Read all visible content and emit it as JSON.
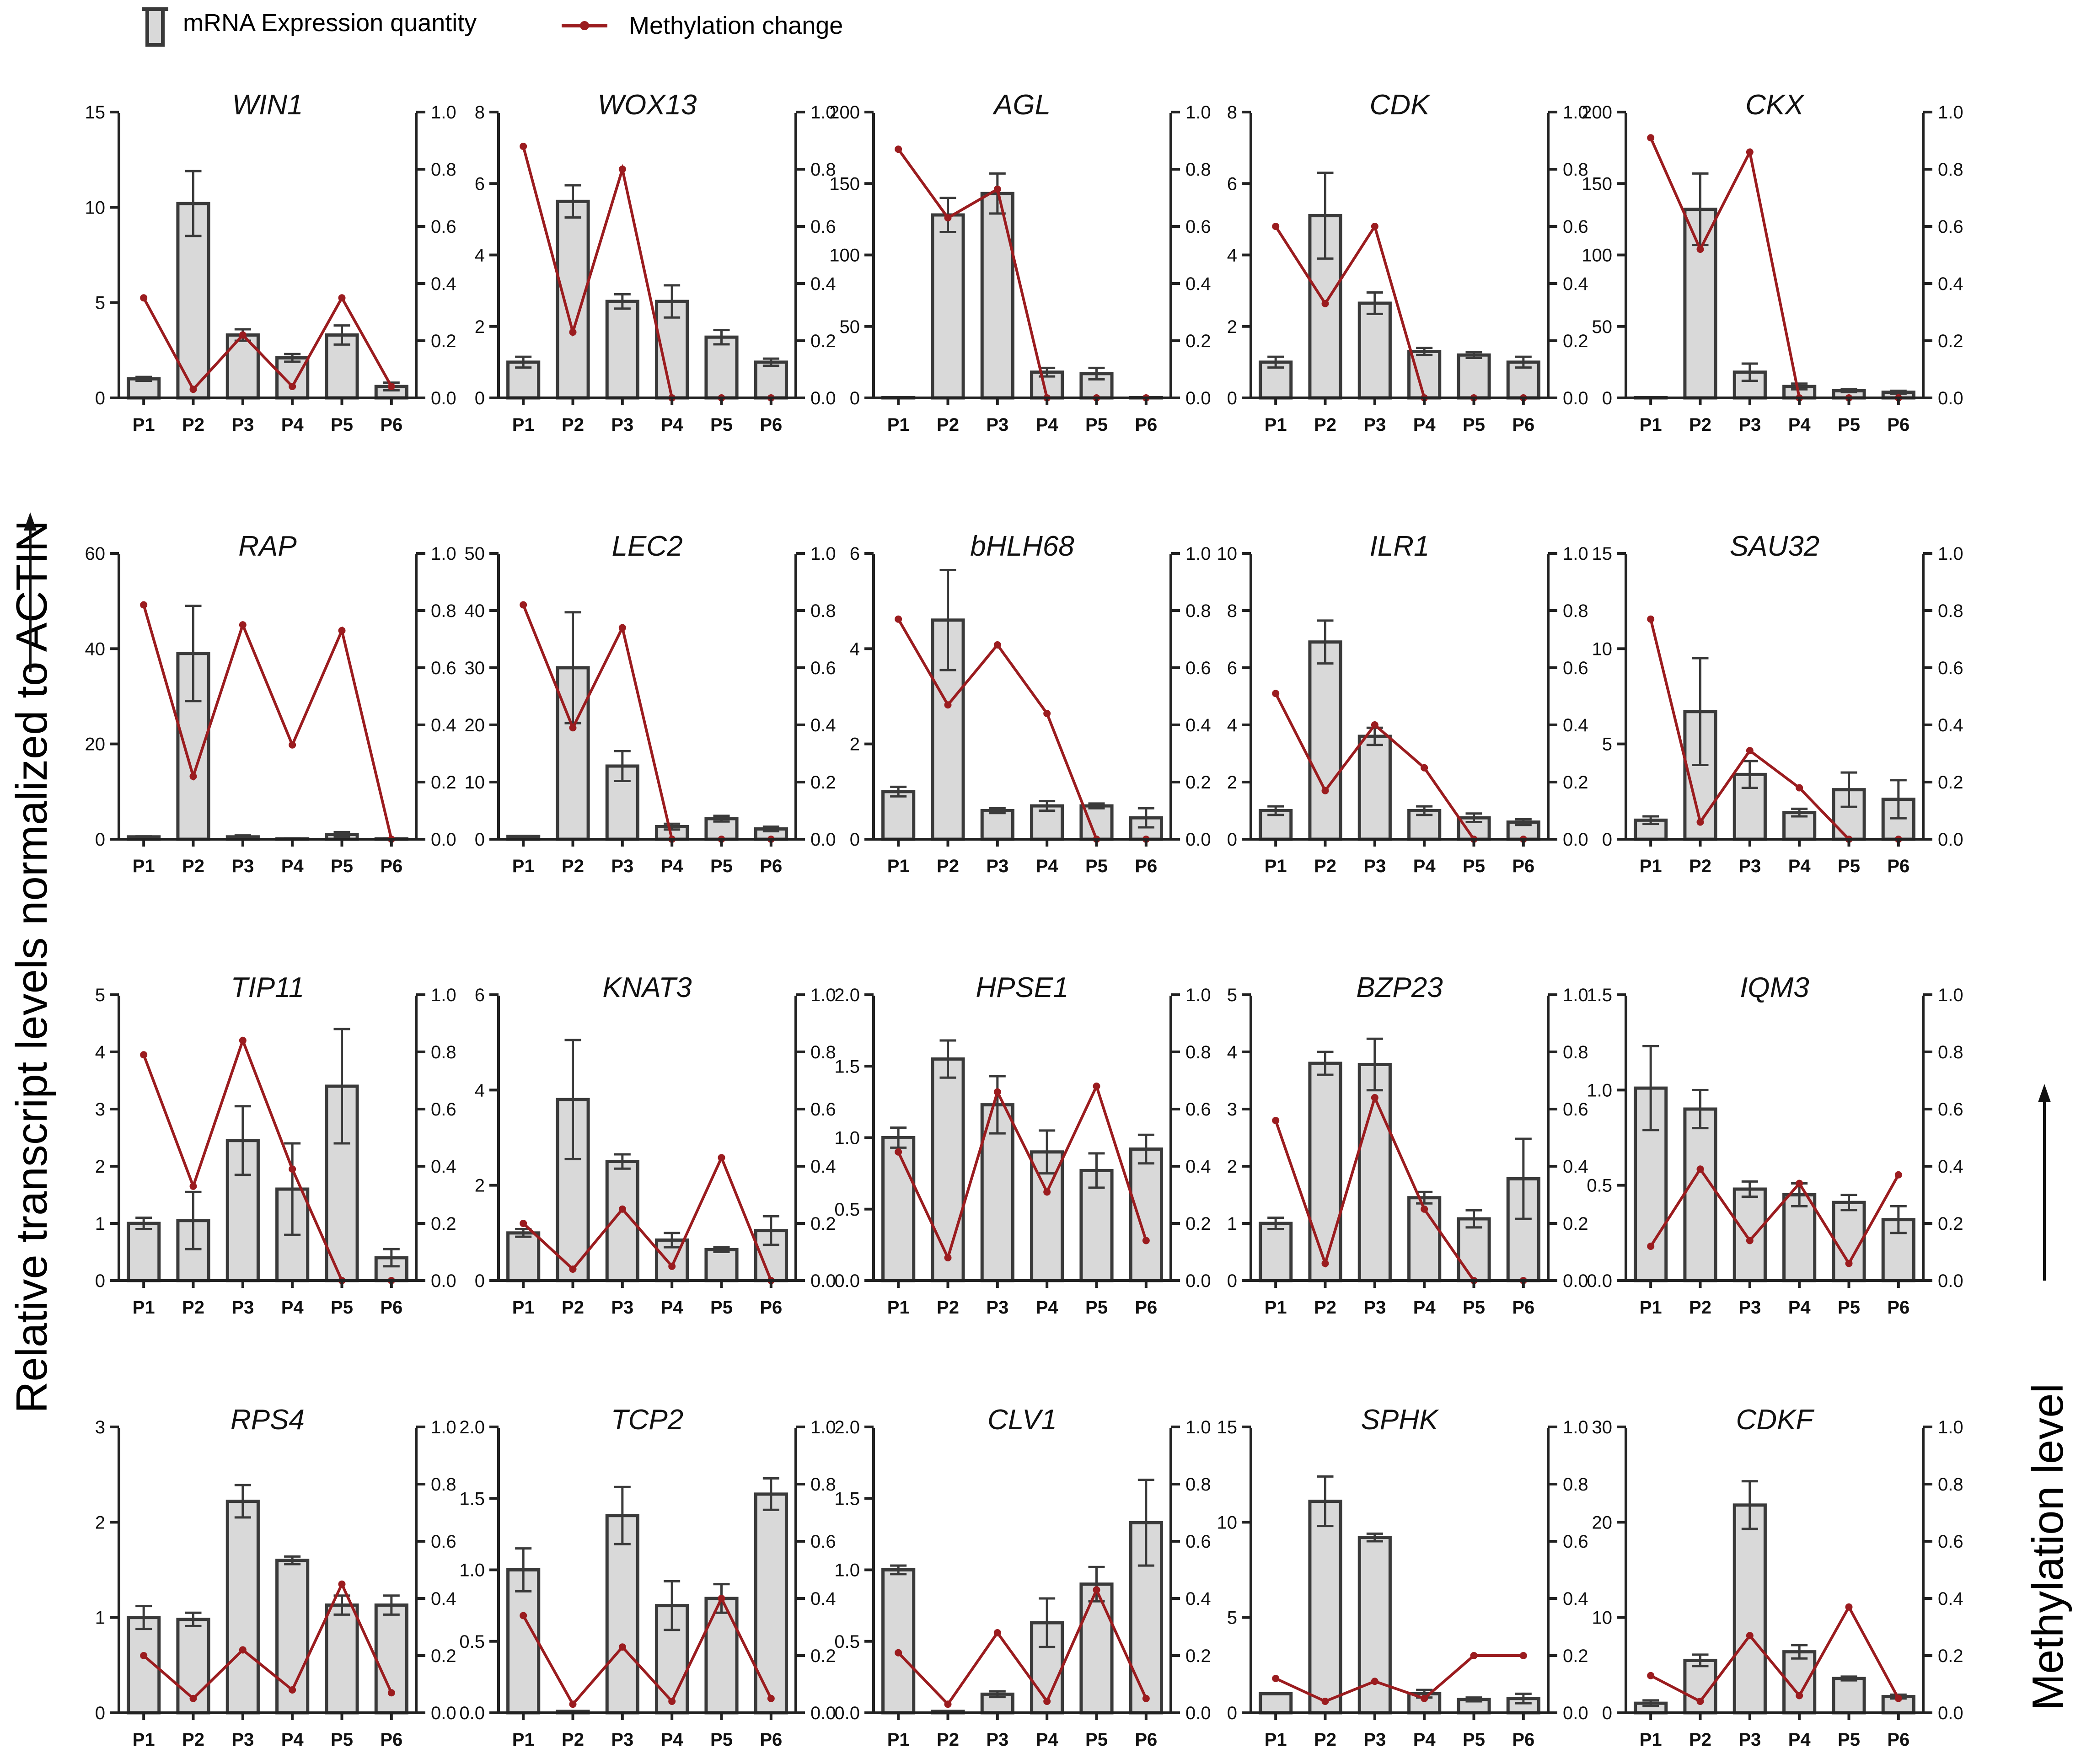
{
  "legend": {
    "bar_label": "mRNA Expression quantity",
    "line_label": "Methylation change"
  },
  "y_left_title": "Relative transcript levels normalized to ACTIN",
  "y_right_title": "Methylation level",
  "colors": {
    "bar_fill": "#d9d9d9",
    "bar_stroke": "#3a3a3a",
    "line": "#9b1c1f",
    "axis": "#222222"
  },
  "chart_data": [
    {
      "type": "bar",
      "title": "WIN1",
      "categories": [
        "P1",
        "P2",
        "P3",
        "P4",
        "P5",
        "P6"
      ],
      "ylim": [
        0,
        15
      ],
      "yticks": [
        0,
        5,
        10,
        15
      ],
      "values": [
        1.0,
        10.2,
        3.3,
        2.1,
        3.3,
        0.6
      ],
      "errors": [
        0.1,
        1.7,
        0.3,
        0.2,
        0.5,
        0.2
      ],
      "methylation": [
        0.35,
        0.03,
        0.22,
        0.04,
        0.35,
        0.04
      ],
      "y2lim": [
        0,
        1.0
      ]
    },
    {
      "type": "bar",
      "title": "WOX13",
      "categories": [
        "P1",
        "P2",
        "P3",
        "P4",
        "P5",
        "P6"
      ],
      "ylim": [
        0,
        8
      ],
      "yticks": [
        0,
        2,
        4,
        6,
        8
      ],
      "values": [
        1.0,
        5.5,
        2.7,
        2.7,
        1.7,
        1.0
      ],
      "errors": [
        0.15,
        0.45,
        0.2,
        0.45,
        0.2,
        0.1
      ],
      "methylation": [
        0.88,
        0.23,
        0.8,
        0.0,
        0.0,
        0.0
      ],
      "y2lim": [
        0,
        1.0
      ]
    },
    {
      "type": "bar",
      "title": "AGL",
      "categories": [
        "P1",
        "P2",
        "P3",
        "P4",
        "P5",
        "P6"
      ],
      "ylim": [
        0,
        200
      ],
      "yticks": [
        0,
        50,
        100,
        150,
        200
      ],
      "values": [
        0,
        128,
        143,
        18,
        17,
        0
      ],
      "errors": [
        0,
        12,
        14,
        3,
        4,
        0
      ],
      "methylation": [
        0.87,
        0.63,
        0.73,
        0.0,
        0.0,
        0.0
      ],
      "y2lim": [
        0,
        1.0
      ]
    },
    {
      "type": "bar",
      "title": "CDK",
      "categories": [
        "P1",
        "P2",
        "P3",
        "P4",
        "P5",
        "P6"
      ],
      "ylim": [
        0,
        8
      ],
      "yticks": [
        0,
        2,
        4,
        6,
        8
      ],
      "values": [
        1.0,
        5.1,
        2.65,
        1.3,
        1.2,
        1.0
      ],
      "errors": [
        0.15,
        1.2,
        0.3,
        0.1,
        0.08,
        0.15
      ],
      "methylation": [
        0.6,
        0.33,
        0.6,
        0.0,
        0.0,
        0.0
      ],
      "y2lim": [
        0,
        1.0
      ]
    },
    {
      "type": "bar",
      "title": "CKX",
      "categories": [
        "P1",
        "P2",
        "P3",
        "P4",
        "P5",
        "P6"
      ],
      "ylim": [
        0,
        200
      ],
      "yticks": [
        0,
        50,
        100,
        150,
        200
      ],
      "values": [
        0,
        132,
        18,
        8,
        5,
        4
      ],
      "errors": [
        0,
        25,
        6,
        2,
        1,
        1
      ],
      "methylation": [
        0.91,
        0.52,
        0.86,
        0.0,
        0.0,
        0.0
      ],
      "y2lim": [
        0,
        1.0
      ]
    },
    {
      "type": "bar",
      "title": "RAP",
      "categories": [
        "P1",
        "P2",
        "P3",
        "P4",
        "P5",
        "P6"
      ],
      "ylim": [
        0,
        60
      ],
      "yticks": [
        0,
        20,
        40,
        60
      ],
      "values": [
        0.5,
        39,
        0.5,
        0.1,
        1.0,
        0.1
      ],
      "errors": [
        0.1,
        10,
        0.3,
        0.1,
        0.5,
        0.1
      ],
      "methylation": [
        0.82,
        0.22,
        0.75,
        0.33,
        0.73,
        0.0
      ],
      "y2lim": [
        0,
        1.0
      ]
    },
    {
      "type": "bar",
      "title": "LEC2",
      "categories": [
        "P1",
        "P2",
        "P3",
        "P4",
        "P5",
        "P6"
      ],
      "ylim": [
        0,
        50
      ],
      "yticks": [
        0,
        10,
        20,
        30,
        40,
        50
      ],
      "values": [
        0.5,
        30,
        12.8,
        2.2,
        3.6,
        1.8
      ],
      "errors": [
        0.1,
        9.7,
        2.6,
        0.5,
        0.5,
        0.4
      ],
      "methylation": [
        0.82,
        0.39,
        0.74,
        0.0,
        0.0,
        0.0
      ],
      "y2lim": [
        0,
        1.0
      ]
    },
    {
      "type": "bar",
      "title": "bHLH68",
      "categories": [
        "P1",
        "P2",
        "P3",
        "P4",
        "P5",
        "P6"
      ],
      "ylim": [
        0,
        6
      ],
      "yticks": [
        0,
        2,
        4,
        6
      ],
      "values": [
        1.0,
        4.6,
        0.6,
        0.7,
        0.7,
        0.45
      ],
      "errors": [
        0.1,
        1.05,
        0.05,
        0.1,
        0.05,
        0.2
      ],
      "methylation": [
        0.77,
        0.47,
        0.68,
        0.44,
        0.0,
        0.0
      ],
      "y2lim": [
        0,
        1.0
      ]
    },
    {
      "type": "bar",
      "title": "ILR1",
      "categories": [
        "P1",
        "P2",
        "P3",
        "P4",
        "P5",
        "P6"
      ],
      "ylim": [
        0,
        10
      ],
      "yticks": [
        0,
        2,
        4,
        6,
        8,
        10
      ],
      "values": [
        1.0,
        6.9,
        3.6,
        1.0,
        0.75,
        0.6
      ],
      "errors": [
        0.15,
        0.75,
        0.3,
        0.15,
        0.15,
        0.1
      ],
      "methylation": [
        0.51,
        0.17,
        0.4,
        0.25,
        0.0,
        0.0
      ],
      "y2lim": [
        0,
        1.0
      ]
    },
    {
      "type": "bar",
      "title": "SAU32",
      "categories": [
        "P1",
        "P2",
        "P3",
        "P4",
        "P5",
        "P6"
      ],
      "ylim": [
        0,
        15
      ],
      "yticks": [
        0,
        5,
        10,
        15
      ],
      "values": [
        1.0,
        6.7,
        3.4,
        1.4,
        2.6,
        2.1
      ],
      "errors": [
        0.2,
        2.8,
        0.7,
        0.2,
        0.9,
        1.0
      ],
      "methylation": [
        0.77,
        0.06,
        0.31,
        0.18,
        0.0,
        0.0
      ],
      "y2lim": [
        0,
        1.0
      ]
    },
    {
      "type": "bar",
      "title": "TIP11",
      "categories": [
        "P1",
        "P2",
        "P3",
        "P4",
        "P5",
        "P6"
      ],
      "ylim": [
        0,
        5
      ],
      "yticks": [
        0,
        1,
        2,
        3,
        4,
        5
      ],
      "values": [
        1.0,
        1.05,
        2.45,
        1.6,
        3.4,
        0.4
      ],
      "errors": [
        0.1,
        0.5,
        0.6,
        0.8,
        1.0,
        0.15
      ],
      "methylation": [
        0.79,
        0.33,
        0.84,
        0.39,
        0.0,
        0.0
      ],
      "y2lim": [
        0,
        1.0
      ]
    },
    {
      "type": "bar",
      "title": "KNAT3",
      "categories": [
        "P1",
        "P2",
        "P3",
        "P4",
        "P5",
        "P6"
      ],
      "ylim": [
        0,
        6
      ],
      "yticks": [
        0,
        2,
        4,
        6
      ],
      "values": [
        1.0,
        3.8,
        2.5,
        0.85,
        0.65,
        1.05
      ],
      "errors": [
        0.08,
        1.25,
        0.15,
        0.15,
        0.05,
        0.3
      ],
      "methylation": [
        0.2,
        0.04,
        0.25,
        0.05,
        0.43,
        0.0
      ],
      "y2lim": [
        0,
        1.0
      ]
    },
    {
      "type": "bar",
      "title": "HPSE1",
      "categories": [
        "P1",
        "P2",
        "P3",
        "P4",
        "P5",
        "P6"
      ],
      "ylim": [
        0,
        2.0
      ],
      "yticks": [
        0,
        0.5,
        1.0,
        1.5,
        2.0
      ],
      "values": [
        1.0,
        1.55,
        1.23,
        0.9,
        0.77,
        0.92
      ],
      "errors": [
        0.07,
        0.13,
        0.2,
        0.15,
        0.12,
        0.1
      ],
      "methylation": [
        0.45,
        0.08,
        0.66,
        0.31,
        0.68,
        0.14
      ],
      "y2lim": [
        0,
        1.0
      ]
    },
    {
      "type": "bar",
      "title": "BZP23",
      "categories": [
        "P1",
        "P2",
        "P3",
        "P4",
        "P5",
        "P6"
      ],
      "ylim": [
        0,
        5
      ],
      "yticks": [
        0,
        1,
        2,
        3,
        4,
        5
      ],
      "values": [
        1.0,
        3.8,
        3.78,
        1.45,
        1.08,
        1.78
      ],
      "errors": [
        0.1,
        0.2,
        0.45,
        0.1,
        0.15,
        0.7
      ],
      "methylation": [
        0.56,
        0.06,
        0.64,
        0.25,
        0.0,
        0.0
      ],
      "y2lim": [
        0,
        1.0
      ]
    },
    {
      "type": "bar",
      "title": "IQM3",
      "categories": [
        "P1",
        "P2",
        "P3",
        "P4",
        "P5",
        "P6"
      ],
      "ylim": [
        0,
        1.5
      ],
      "yticks": [
        0,
        0.5,
        1.0,
        1.5
      ],
      "values": [
        1.01,
        0.9,
        0.48,
        0.45,
        0.41,
        0.32
      ],
      "errors": [
        0.22,
        0.1,
        0.04,
        0.06,
        0.04,
        0.07
      ],
      "methylation": [
        0.12,
        0.39,
        0.14,
        0.34,
        0.06,
        0.37
      ],
      "y2lim": [
        0,
        1.0
      ]
    },
    {
      "type": "bar",
      "title": "RPS4",
      "categories": [
        "P1",
        "P2",
        "P3",
        "P4",
        "P5",
        "P6"
      ],
      "ylim": [
        0,
        3
      ],
      "yticks": [
        0,
        1,
        2,
        3
      ],
      "values": [
        1.0,
        0.98,
        2.22,
        1.6,
        1.13,
        1.13
      ],
      "errors": [
        0.12,
        0.07,
        0.17,
        0.04,
        0.1,
        0.1
      ],
      "methylation": [
        0.2,
        0.05,
        0.22,
        0.08,
        0.45,
        0.07
      ],
      "y2lim": [
        0,
        1.0
      ]
    },
    {
      "type": "bar",
      "title": "TCP2",
      "categories": [
        "P1",
        "P2",
        "P3",
        "P4",
        "P5",
        "P6"
      ],
      "ylim": [
        0,
        2.0
      ],
      "yticks": [
        0,
        0.5,
        1.0,
        1.5,
        2.0
      ],
      "values": [
        1.0,
        0.01,
        1.38,
        0.75,
        0.8,
        1.53
      ],
      "errors": [
        0.15,
        0.0,
        0.2,
        0.17,
        0.1,
        0.11
      ],
      "methylation": [
        0.34,
        0.03,
        0.23,
        0.04,
        0.4,
        0.05
      ],
      "y2lim": [
        0,
        1.0
      ]
    },
    {
      "type": "bar",
      "title": "CLV1",
      "categories": [
        "P1",
        "P2",
        "P3",
        "P4",
        "P5",
        "P6"
      ],
      "ylim": [
        0,
        2.0
      ],
      "yticks": [
        0,
        0.5,
        1.0,
        1.5,
        2.0
      ],
      "values": [
        1.0,
        0.01,
        0.13,
        0.63,
        0.9,
        1.33
      ],
      "errors": [
        0.03,
        0.0,
        0.02,
        0.17,
        0.12,
        0.3
      ],
      "methylation": [
        0.21,
        0.03,
        0.28,
        0.04,
        0.43,
        0.05
      ],
      "y2lim": [
        0,
        1.0
      ]
    },
    {
      "type": "bar",
      "title": "SPHK",
      "categories": [
        "P1",
        "P2",
        "P3",
        "P4",
        "P5",
        "P6"
      ],
      "ylim": [
        0,
        15
      ],
      "yticks": [
        0,
        5,
        10,
        15
      ],
      "values": [
        1.0,
        11.1,
        9.2,
        1.0,
        0.7,
        0.75
      ],
      "errors": [
        0.0,
        1.3,
        0.2,
        0.2,
        0.1,
        0.25
      ],
      "methylation": [
        0.12,
        0.04,
        0.11,
        0.05,
        0.2,
        0.2
      ],
      "y2lim": [
        0,
        1.0
      ]
    },
    {
      "type": "bar",
      "title": "CDKF",
      "categories": [
        "P1",
        "P2",
        "P3",
        "P4",
        "P5",
        "P6"
      ],
      "ylim": [
        0,
        30
      ],
      "yticks": [
        0,
        10,
        20,
        30
      ],
      "values": [
        1.0,
        5.5,
        21.8,
        6.4,
        3.6,
        1.7
      ],
      "errors": [
        0.3,
        0.6,
        2.5,
        0.7,
        0.2,
        0.2
      ],
      "methylation": [
        0.13,
        0.04,
        0.27,
        0.06,
        0.37,
        0.05
      ],
      "y2lim": [
        0,
        1.0
      ]
    }
  ]
}
